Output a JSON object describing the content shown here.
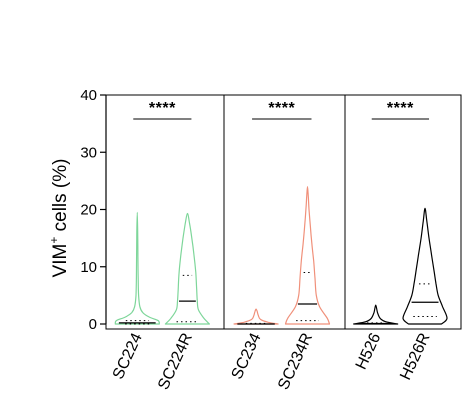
{
  "chart_data": {
    "type": "violin",
    "title": "",
    "ylabel": "VIM",
    "ylabel_superscript": "+",
    "ylabel_suffix": " cells (%)",
    "ylim": [
      0,
      40
    ],
    "yticks": [
      0,
      10,
      20,
      30,
      40
    ],
    "grid": false,
    "panels": [
      {
        "significance": "****",
        "groups": [
          {
            "category": "SC224",
            "color": "#7ed69a",
            "median": 0.2,
            "q1": 0.0,
            "q3": 0.6,
            "profile": [
              [
                0,
                1.0
              ],
              [
                0.6,
                0.95
              ],
              [
                1.2,
                0.55
              ],
              [
                2.0,
                0.25
              ],
              [
                3,
                0.12
              ],
              [
                5,
                0.06
              ],
              [
                8,
                0.04
              ],
              [
                12,
                0.03
              ],
              [
                16,
                0.02
              ],
              [
                19.5,
                0.0
              ]
            ]
          },
          {
            "category": "SC224R",
            "color": "#7ed69a",
            "median": 4.0,
            "q1": 0.4,
            "q3": 8.5,
            "profile": [
              [
                0,
                1.0
              ],
              [
                1,
                0.75
              ],
              [
                2.5,
                0.5
              ],
              [
                4,
                0.45
              ],
              [
                6,
                0.42
              ],
              [
                9,
                0.38
              ],
              [
                12,
                0.3
              ],
              [
                15,
                0.2
              ],
              [
                17.5,
                0.1
              ],
              [
                19.3,
                0.0
              ]
            ]
          }
        ]
      },
      {
        "significance": "****",
        "groups": [
          {
            "category": "SC234",
            "color": "#f0907a",
            "median": 0.0,
            "q1": 0.0,
            "q3": 0.1,
            "profile": [
              [
                0,
                1.0
              ],
              [
                0.3,
                0.55
              ],
              [
                0.8,
                0.2
              ],
              [
                1.5,
                0.1
              ],
              [
                2.2,
                0.05
              ],
              [
                2.6,
                0.0
              ]
            ]
          },
          {
            "category": "SC234R",
            "color": "#f0907a",
            "median": 3.5,
            "q1": 0.6,
            "q3": 9.0,
            "profile": [
              [
                0,
                1.0
              ],
              [
                1,
                0.9
              ],
              [
                3,
                0.55
              ],
              [
                5,
                0.4
              ],
              [
                8,
                0.34
              ],
              [
                11,
                0.28
              ],
              [
                14,
                0.2
              ],
              [
                17,
                0.13
              ],
              [
                20,
                0.07
              ],
              [
                22,
                0.04
              ],
              [
                24,
                0.0
              ]
            ]
          }
        ]
      },
      {
        "significance": "****",
        "groups": [
          {
            "category": "H526",
            "color": "#000000",
            "median": 0.1,
            "q1": 0.0,
            "q3": 0.2,
            "profile": [
              [
                0,
                1.0
              ],
              [
                0.4,
                0.45
              ],
              [
                1,
                0.2
              ],
              [
                2,
                0.08
              ],
              [
                3.3,
                0.0
              ]
            ]
          },
          {
            "category": "H526R",
            "color": "#000000",
            "median": 3.8,
            "q1": 1.3,
            "q3": 7.0,
            "profile": [
              [
                0,
                0.75
              ],
              [
                1,
                1.0
              ],
              [
                3,
                0.8
              ],
              [
                5,
                0.6
              ],
              [
                7,
                0.5
              ],
              [
                9,
                0.42
              ],
              [
                12,
                0.3
              ],
              [
                15,
                0.18
              ],
              [
                18,
                0.08
              ],
              [
                20.2,
                0.0
              ]
            ]
          }
        ]
      }
    ]
  }
}
